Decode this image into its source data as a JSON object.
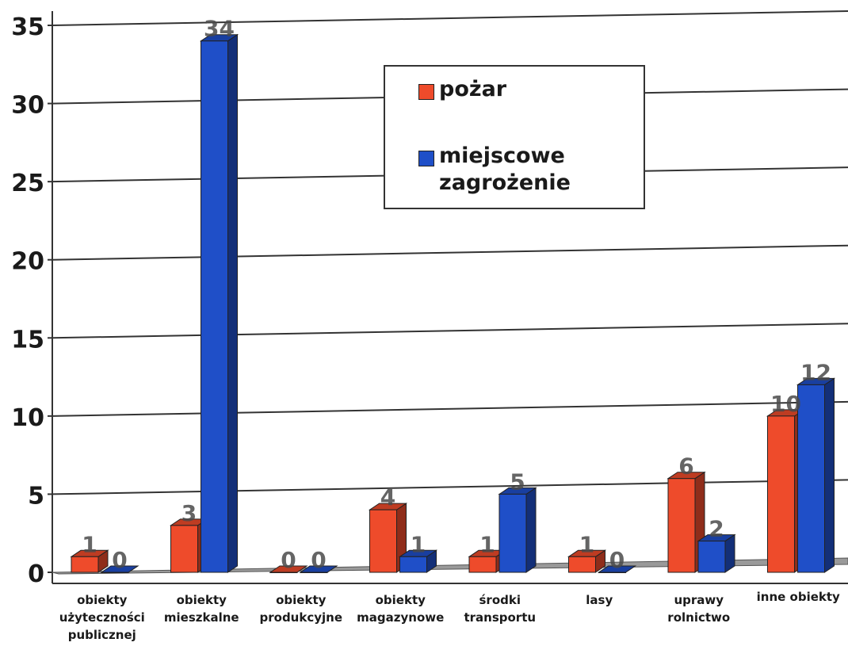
{
  "chart_data": {
    "type": "bar",
    "categories": [
      [
        "obiekty",
        "użyteczności",
        "publicznej"
      ],
      [
        "obiekty",
        "mieszkalne"
      ],
      [
        "obiekty",
        "produkcyjne"
      ],
      [
        "obiekty",
        "magazynowe"
      ],
      [
        "środki",
        "transportu"
      ],
      [
        "lasy"
      ],
      [
        "uprawy",
        "rolnictwo"
      ],
      [
        "inne obiekty"
      ]
    ],
    "series": [
      {
        "name": "pożar",
        "color": "#ee4b2b",
        "values": [
          1,
          3,
          0,
          4,
          1,
          1,
          6,
          10
        ]
      },
      {
        "name": "miejscowe zagrożenie",
        "color": "#1f4fc8",
        "values": [
          0,
          34,
          0,
          1,
          5,
          0,
          2,
          12
        ]
      }
    ],
    "ylim": [
      0,
      35
    ],
    "yticks": [
      0,
      5,
      10,
      15,
      20,
      25,
      30,
      35
    ],
    "grid": true,
    "legend_position": "top-center"
  }
}
